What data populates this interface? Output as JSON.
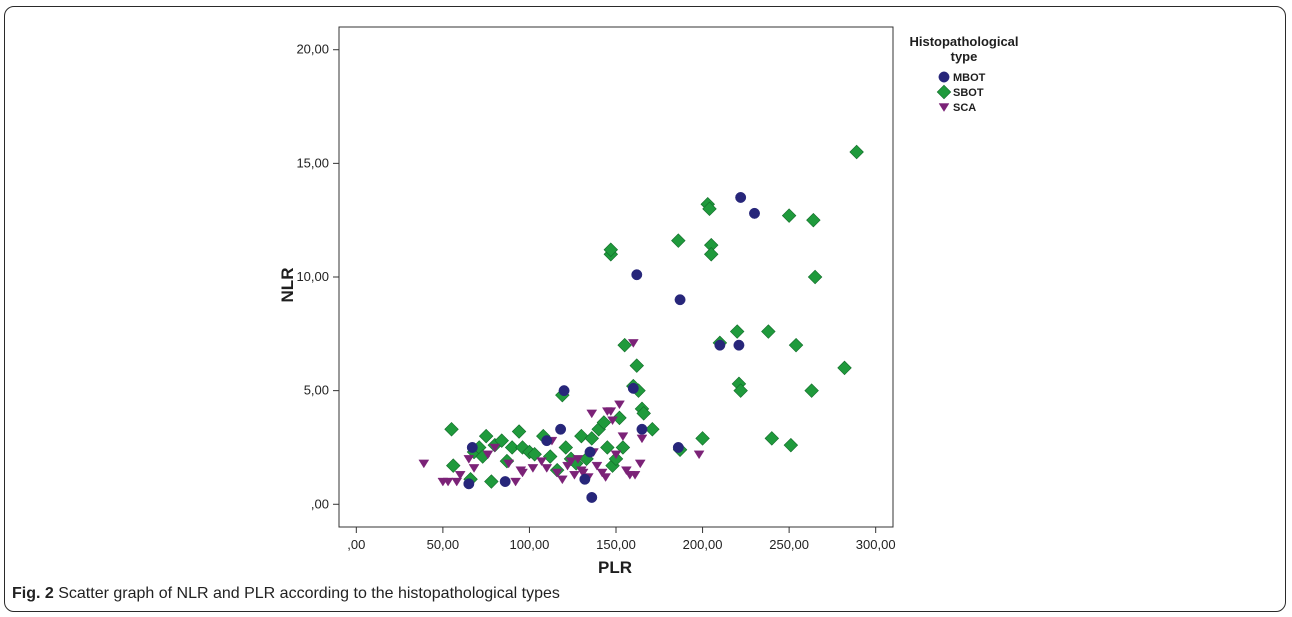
{
  "caption": {
    "label": "Fig. 2",
    "text": " Scatter graph of NLR and PLR according to the histopathological types"
  },
  "chart_data": {
    "type": "scatter",
    "xlabel": "PLR",
    "ylabel": "NLR",
    "xlim": [
      -10,
      310
    ],
    "ylim": [
      -1,
      21
    ],
    "x_ticks": [
      0,
      50,
      100,
      150,
      200,
      250,
      300
    ],
    "x_tick_labels": [
      ",00",
      "50,00",
      "100,00",
      "150,00",
      "200,00",
      "250,00",
      "300,00"
    ],
    "y_ticks": [
      0,
      5,
      10,
      15,
      20
    ],
    "y_tick_labels": [
      ",00",
      "5,00",
      "10,00",
      "15,00",
      "20,00"
    ],
    "grid": false,
    "legend": {
      "title_lines": [
        "Histopathological",
        "type"
      ],
      "placement": "outside-top-right"
    },
    "series": [
      {
        "name": "MBOT",
        "marker": "circle",
        "color": "#27267a",
        "points": [
          [
            65,
            0.9
          ],
          [
            67,
            2.5
          ],
          [
            86,
            1.0
          ],
          [
            110,
            2.8
          ],
          [
            118,
            3.3
          ],
          [
            120,
            5.0
          ],
          [
            132,
            1.1
          ],
          [
            135,
            2.3
          ],
          [
            136,
            0.3
          ],
          [
            160,
            5.1
          ],
          [
            162,
            10.1
          ],
          [
            165,
            3.3
          ],
          [
            186,
            2.5
          ],
          [
            187,
            9.0
          ],
          [
            210,
            7.0
          ],
          [
            221,
            7.0
          ],
          [
            222,
            13.5
          ],
          [
            230,
            12.8
          ]
        ]
      },
      {
        "name": "SBOT",
        "marker": "diamond",
        "color": "#1f9a3c",
        "points": [
          [
            55,
            3.3
          ],
          [
            56,
            1.7
          ],
          [
            66,
            1.1
          ],
          [
            68,
            2.3
          ],
          [
            71,
            2.5
          ],
          [
            73,
            2.1
          ],
          [
            75,
            3.0
          ],
          [
            78,
            1.0
          ],
          [
            80,
            2.6
          ],
          [
            84,
            2.8
          ],
          [
            87,
            1.9
          ],
          [
            90,
            2.5
          ],
          [
            94,
            3.2
          ],
          [
            96,
            2.5
          ],
          [
            100,
            2.3
          ],
          [
            103,
            2.2
          ],
          [
            108,
            3.0
          ],
          [
            112,
            2.1
          ],
          [
            116,
            1.5
          ],
          [
            119,
            4.8
          ],
          [
            121,
            2.5
          ],
          [
            124,
            2.0
          ],
          [
            127,
            1.8
          ],
          [
            130,
            3.0
          ],
          [
            133,
            2.0
          ],
          [
            136,
            2.9
          ],
          [
            140,
            3.3
          ],
          [
            143,
            3.6
          ],
          [
            145,
            2.5
          ],
          [
            147,
            11.0
          ],
          [
            147,
            11.2
          ],
          [
            148,
            1.7
          ],
          [
            150,
            2.0
          ],
          [
            152,
            3.8
          ],
          [
            154,
            2.5
          ],
          [
            155,
            7.0
          ],
          [
            160,
            5.2
          ],
          [
            162,
            6.1
          ],
          [
            163,
            5.0
          ],
          [
            165,
            4.2
          ],
          [
            166,
            4.0
          ],
          [
            171,
            3.3
          ],
          [
            186,
            11.6
          ],
          [
            187,
            2.4
          ],
          [
            200,
            2.9
          ],
          [
            203,
            13.2
          ],
          [
            204,
            13.0
          ],
          [
            205,
            11.4
          ],
          [
            205,
            11.0
          ],
          [
            210,
            7.1
          ],
          [
            220,
            7.6
          ],
          [
            221,
            5.3
          ],
          [
            222,
            5.0
          ],
          [
            238,
            7.6
          ],
          [
            240,
            2.9
          ],
          [
            250,
            12.7
          ],
          [
            251,
            2.6
          ],
          [
            254,
            7.0
          ],
          [
            263,
            5.0
          ],
          [
            264,
            12.5
          ],
          [
            265,
            10.0
          ],
          [
            282,
            6.0
          ],
          [
            289,
            15.5
          ]
        ]
      },
      {
        "name": "SCA",
        "marker": "triangle-down",
        "color": "#7b2277",
        "points": [
          [
            39,
            1.8
          ],
          [
            50,
            1.0
          ],
          [
            53,
            1.0
          ],
          [
            58,
            1.0
          ],
          [
            60,
            1.3
          ],
          [
            65,
            2.0
          ],
          [
            68,
            1.6
          ],
          [
            76,
            2.2
          ],
          [
            80,
            2.5
          ],
          [
            88,
            1.8
          ],
          [
            92,
            1.0
          ],
          [
            95,
            1.5
          ],
          [
            96,
            1.4
          ],
          [
            102,
            1.6
          ],
          [
            107,
            1.9
          ],
          [
            110,
            1.6
          ],
          [
            113,
            2.8
          ],
          [
            116,
            1.4
          ],
          [
            119,
            1.1
          ],
          [
            122,
            1.7
          ],
          [
            124,
            1.9
          ],
          [
            126,
            1.3
          ],
          [
            128,
            2.0
          ],
          [
            130,
            1.5
          ],
          [
            131,
            1.4
          ],
          [
            134,
            1.2
          ],
          [
            136,
            4.0
          ],
          [
            137,
            2.3
          ],
          [
            139,
            1.7
          ],
          [
            142,
            1.4
          ],
          [
            144,
            1.2
          ],
          [
            145,
            4.1
          ],
          [
            147,
            4.1
          ],
          [
            148,
            3.7
          ],
          [
            150,
            2.2
          ],
          [
            152,
            4.4
          ],
          [
            154,
            3.0
          ],
          [
            156,
            1.5
          ],
          [
            158,
            1.3
          ],
          [
            160,
            7.1
          ],
          [
            161,
            1.3
          ],
          [
            164,
            1.8
          ],
          [
            165,
            2.9
          ],
          [
            198,
            2.2
          ]
        ]
      }
    ]
  }
}
